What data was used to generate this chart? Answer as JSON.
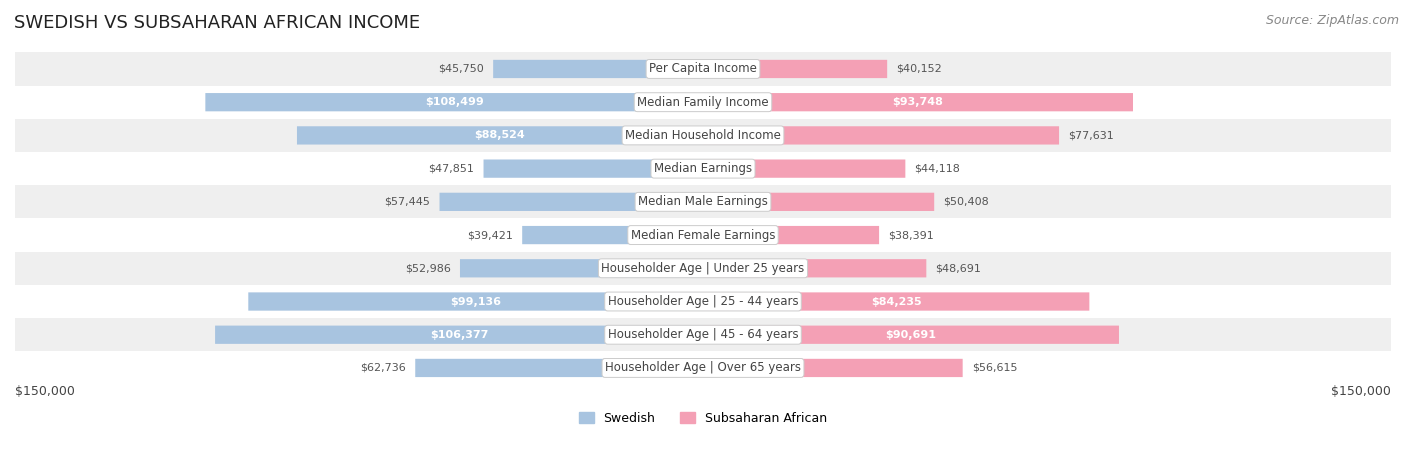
{
  "title": "SWEDISH VS SUBSAHARAN AFRICAN INCOME",
  "source": "Source: ZipAtlas.com",
  "categories": [
    "Per Capita Income",
    "Median Family Income",
    "Median Household Income",
    "Median Earnings",
    "Median Male Earnings",
    "Median Female Earnings",
    "Householder Age | Under 25 years",
    "Householder Age | 25 - 44 years",
    "Householder Age | 45 - 64 years",
    "Householder Age | Over 65 years"
  ],
  "swedish_values": [
    45750,
    108499,
    88524,
    47851,
    57445,
    39421,
    52986,
    99136,
    106377,
    62736
  ],
  "subsaharan_values": [
    40152,
    93748,
    77631,
    44118,
    50408,
    38391,
    48691,
    84235,
    90691,
    56615
  ],
  "swedish_labels": [
    "$45,750",
    "$108,499",
    "$88,524",
    "$47,851",
    "$57,445",
    "$39,421",
    "$52,986",
    "$99,136",
    "$106,377",
    "$62,736"
  ],
  "subsaharan_labels": [
    "$40,152",
    "$93,748",
    "$77,631",
    "$44,118",
    "$50,408",
    "$38,391",
    "$48,691",
    "$84,235",
    "$90,691",
    "$56,615"
  ],
  "swedish_color": "#a8c4e0",
  "subsaharan_color": "#f4a0b5",
  "inside_threshold_swedish": 80000,
  "inside_threshold_subsaharan": 80000,
  "max_val": 150000,
  "background_color": "#ffffff",
  "row_bg_even": "#efefef",
  "row_bg_odd": "#ffffff",
  "legend_swedish": "Swedish",
  "legend_subsaharan": "Subsaharan African",
  "xlabel_left": "$150,000",
  "xlabel_right": "$150,000",
  "title_fontsize": 13,
  "source_fontsize": 9,
  "bar_height": 0.55,
  "category_fontsize": 8.5,
  "value_fontsize": 8.0
}
